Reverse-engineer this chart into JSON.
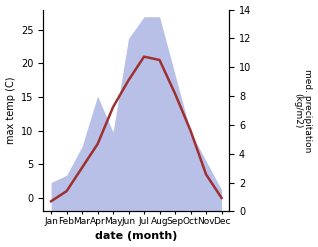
{
  "months": [
    "Jan",
    "Feb",
    "Mar",
    "Apr",
    "May",
    "Jun",
    "Jul",
    "Aug",
    "Sep",
    "Oct",
    "Nov",
    "Dec"
  ],
  "max_temp": [
    -0.5,
    1.0,
    4.5,
    8.0,
    13.5,
    17.5,
    21.0,
    20.5,
    15.5,
    10.0,
    3.5,
    0.0
  ],
  "precipitation": [
    2.0,
    2.5,
    4.5,
    8.0,
    5.5,
    12.0,
    13.5,
    13.5,
    9.5,
    5.5,
    3.5,
    1.5
  ],
  "temp_color": "#9e3030",
  "precip_fill_color": "#b8c0e8",
  "temp_ylim": [
    -2,
    28
  ],
  "precip_ylim": [
    0,
    14
  ],
  "temp_yticks": [
    0,
    5,
    10,
    15,
    20,
    25
  ],
  "precip_yticks": [
    0,
    2,
    4,
    6,
    8,
    10,
    12,
    14
  ],
  "xlabel": "date (month)",
  "ylabel_left": "max temp (C)",
  "ylabel_right": "med. precipitation\n(kg/m2)",
  "background_color": "#ffffff"
}
